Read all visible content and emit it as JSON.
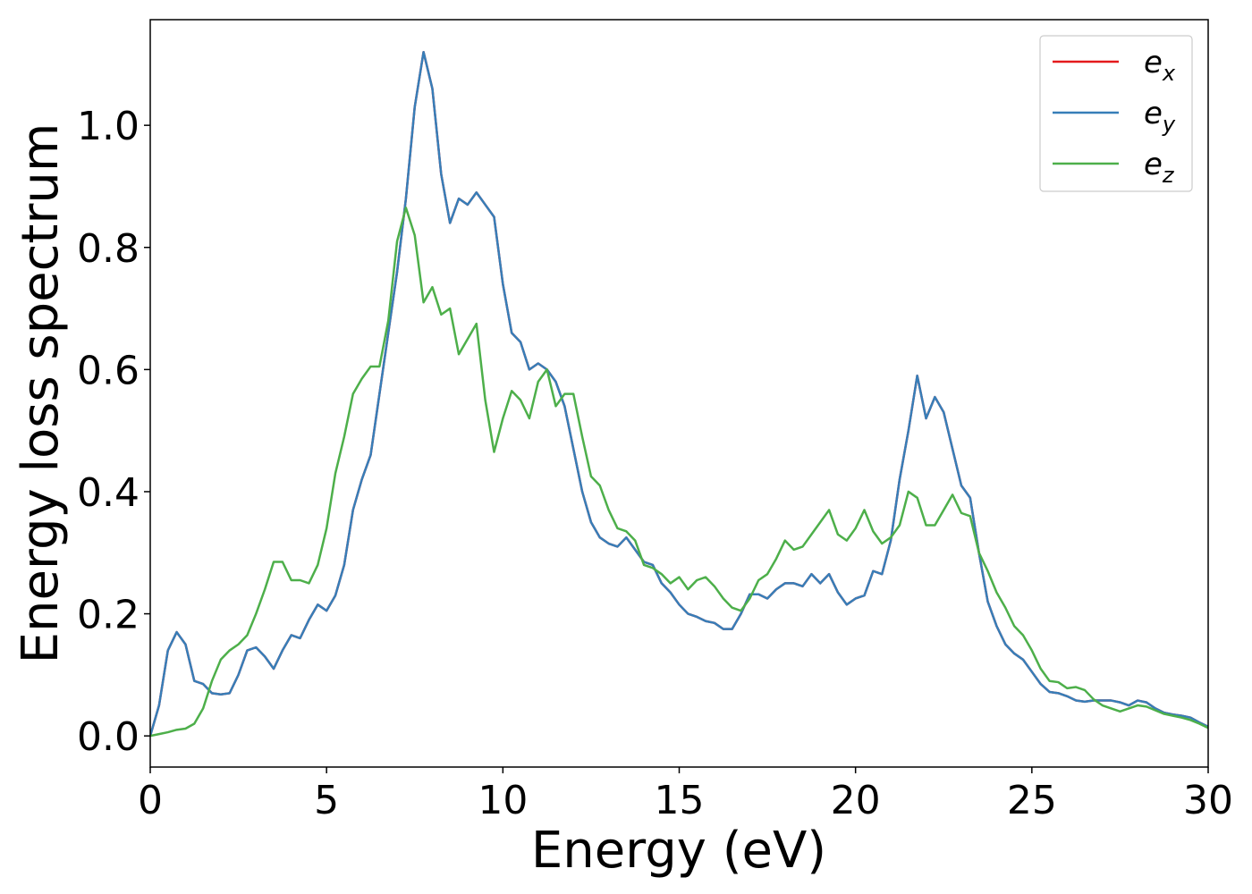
{
  "chart_data": {
    "type": "line",
    "xlabel": "Energy (eV)",
    "ylabel": "Energy loss spectrum",
    "xlim": [
      0,
      30
    ],
    "ylim": [
      -0.051,
      1.173
    ],
    "xticks": [
      0,
      5,
      10,
      15,
      20,
      25,
      30
    ],
    "yticks": [
      {
        "value": 0,
        "label": "0.0"
      },
      {
        "value": 0.2,
        "label": "0.2"
      },
      {
        "value": 0.4,
        "label": "0.4"
      },
      {
        "value": 0.6,
        "label": "0.6"
      },
      {
        "value": 0.8,
        "label": "0.8"
      },
      {
        "value": 1.0,
        "label": "1.0"
      }
    ],
    "legend": "upper right",
    "x": [
      0,
      0.25,
      0.5,
      0.75,
      1,
      1.25,
      1.5,
      1.75,
      2,
      2.25,
      2.5,
      2.75,
      3,
      3.25,
      3.5,
      3.75,
      4,
      4.25,
      4.5,
      4.75,
      5,
      5.25,
      5.5,
      5.75,
      6,
      6.25,
      6.5,
      6.75,
      7,
      7.25,
      7.5,
      7.75,
      8,
      8.25,
      8.5,
      8.75,
      9,
      9.25,
      9.5,
      9.75,
      10,
      10.25,
      10.5,
      10.75,
      11,
      11.25,
      11.5,
      11.75,
      12,
      12.25,
      12.5,
      12.75,
      13,
      13.25,
      13.5,
      13.75,
      14,
      14.25,
      14.5,
      14.75,
      15,
      15.25,
      15.5,
      15.75,
      16,
      16.25,
      16.5,
      16.75,
      17,
      17.25,
      17.5,
      17.75,
      18,
      18.25,
      18.5,
      18.75,
      19,
      19.25,
      19.5,
      19.75,
      20,
      20.25,
      20.5,
      20.75,
      21,
      21.25,
      21.5,
      21.75,
      22,
      22.25,
      22.5,
      22.75,
      23,
      23.25,
      23.5,
      23.75,
      24,
      24.25,
      24.5,
      24.75,
      25,
      25.25,
      25.5,
      25.75,
      26,
      26.25,
      26.5,
      26.75,
      27,
      27.25,
      27.5,
      27.75,
      28,
      28.25,
      28.5,
      28.75,
      29,
      29.25,
      29.5,
      29.75,
      30
    ],
    "series": [
      {
        "name": "e_x",
        "color": "#e41a1c",
        "values": [
          0,
          0.05,
          0.14,
          0.17,
          0.15,
          0.09,
          0.085,
          0.07,
          0.068,
          0.07,
          0.1,
          0.14,
          0.145,
          0.13,
          0.11,
          0.14,
          0.165,
          0.16,
          0.19,
          0.215,
          0.205,
          0.23,
          0.28,
          0.37,
          0.42,
          0.46,
          0.56,
          0.66,
          0.76,
          0.88,
          1.03,
          1.12,
          1.06,
          0.92,
          0.84,
          0.88,
          0.87,
          0.89,
          0.87,
          0.85,
          0.74,
          0.66,
          0.645,
          0.6,
          0.61,
          0.6,
          0.58,
          0.54,
          0.47,
          0.4,
          0.35,
          0.325,
          0.315,
          0.31,
          0.325,
          0.305,
          0.285,
          0.28,
          0.25,
          0.235,
          0.215,
          0.2,
          0.195,
          0.188,
          0.185,
          0.175,
          0.175,
          0.2,
          0.232,
          0.232,
          0.225,
          0.24,
          0.25,
          0.25,
          0.245,
          0.265,
          0.25,
          0.265,
          0.235,
          0.215,
          0.225,
          0.23,
          0.27,
          0.265,
          0.32,
          0.42,
          0.5,
          0.59,
          0.52,
          0.555,
          0.53,
          0.47,
          0.41,
          0.39,
          0.3,
          0.22,
          0.18,
          0.15,
          0.135,
          0.125,
          0.105,
          0.085,
          0.072,
          0.07,
          0.065,
          0.058,
          0.056,
          0.058,
          0.058,
          0.058,
          0.055,
          0.05,
          0.058,
          0.055,
          0.045,
          0.038,
          0.035,
          0.033,
          0.03,
          0.022,
          0.015
        ]
      },
      {
        "name": "e_y",
        "color": "#377eb8",
        "values": [
          0,
          0.05,
          0.14,
          0.17,
          0.15,
          0.09,
          0.085,
          0.07,
          0.068,
          0.07,
          0.1,
          0.14,
          0.145,
          0.13,
          0.11,
          0.14,
          0.165,
          0.16,
          0.19,
          0.215,
          0.205,
          0.23,
          0.28,
          0.37,
          0.42,
          0.46,
          0.56,
          0.66,
          0.76,
          0.88,
          1.03,
          1.12,
          1.06,
          0.92,
          0.84,
          0.88,
          0.87,
          0.89,
          0.87,
          0.85,
          0.74,
          0.66,
          0.645,
          0.6,
          0.61,
          0.6,
          0.58,
          0.54,
          0.47,
          0.4,
          0.35,
          0.325,
          0.315,
          0.31,
          0.325,
          0.305,
          0.285,
          0.28,
          0.25,
          0.235,
          0.215,
          0.2,
          0.195,
          0.188,
          0.185,
          0.175,
          0.175,
          0.2,
          0.232,
          0.232,
          0.225,
          0.24,
          0.25,
          0.25,
          0.245,
          0.265,
          0.25,
          0.265,
          0.235,
          0.215,
          0.225,
          0.23,
          0.27,
          0.265,
          0.32,
          0.42,
          0.5,
          0.59,
          0.52,
          0.555,
          0.53,
          0.47,
          0.41,
          0.39,
          0.3,
          0.22,
          0.18,
          0.15,
          0.135,
          0.125,
          0.105,
          0.085,
          0.072,
          0.07,
          0.065,
          0.058,
          0.056,
          0.058,
          0.058,
          0.058,
          0.055,
          0.05,
          0.058,
          0.055,
          0.045,
          0.038,
          0.035,
          0.033,
          0.03,
          0.022,
          0.015
        ]
      },
      {
        "name": "e_z",
        "color": "#4daf4a",
        "values": [
          0,
          0.003,
          0.006,
          0.01,
          0.012,
          0.02,
          0.045,
          0.09,
          0.125,
          0.14,
          0.15,
          0.165,
          0.2,
          0.24,
          0.285,
          0.285,
          0.255,
          0.255,
          0.25,
          0.28,
          0.34,
          0.43,
          0.49,
          0.56,
          0.585,
          0.605,
          0.605,
          0.68,
          0.81,
          0.865,
          0.82,
          0.71,
          0.735,
          0.69,
          0.7,
          0.625,
          0.65,
          0.675,
          0.55,
          0.465,
          0.52,
          0.565,
          0.55,
          0.52,
          0.58,
          0.6,
          0.54,
          0.56,
          0.56,
          0.49,
          0.425,
          0.41,
          0.37,
          0.34,
          0.335,
          0.32,
          0.28,
          0.275,
          0.265,
          0.25,
          0.26,
          0.24,
          0.255,
          0.26,
          0.245,
          0.225,
          0.21,
          0.205,
          0.225,
          0.255,
          0.265,
          0.29,
          0.32,
          0.305,
          0.31,
          0.33,
          0.35,
          0.37,
          0.33,
          0.32,
          0.34,
          0.37,
          0.335,
          0.315,
          0.325,
          0.345,
          0.4,
          0.39,
          0.345,
          0.345,
          0.37,
          0.395,
          0.365,
          0.36,
          0.3,
          0.27,
          0.235,
          0.21,
          0.18,
          0.165,
          0.14,
          0.11,
          0.09,
          0.088,
          0.078,
          0.08,
          0.075,
          0.06,
          0.05,
          0.045,
          0.04,
          0.045,
          0.05,
          0.048,
          0.042,
          0.036,
          0.033,
          0.03,
          0.026,
          0.02,
          0.013
        ]
      }
    ]
  }
}
